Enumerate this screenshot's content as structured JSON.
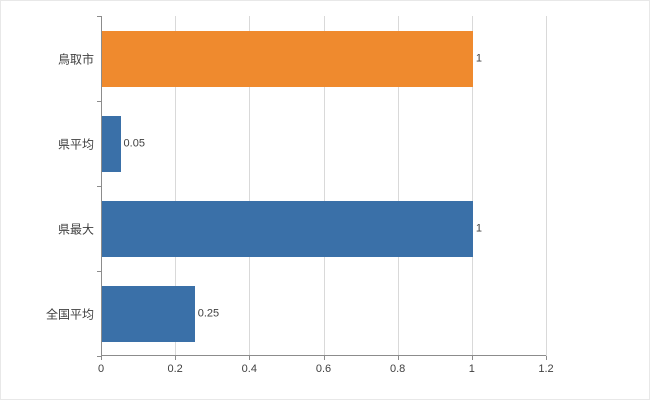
{
  "chart_data": {
    "type": "bar",
    "orientation": "horizontal",
    "title": "",
    "categories": [
      "鳥取市",
      "県平均",
      "県最大",
      "全国平均"
    ],
    "values": [
      1,
      0.05,
      1,
      0.25
    ],
    "value_labels": [
      "1",
      "0.05",
      "1",
      "0.25"
    ],
    "series": [
      {
        "name": "",
        "values": [
          1,
          0.05,
          1,
          0.25
        ]
      }
    ],
    "bar_colors": [
      "#ef8a2e",
      "#3a70a8",
      "#3a70a8",
      "#3a70a8"
    ],
    "xlim": [
      0,
      1.2
    ],
    "xticks": [
      0,
      0.2,
      0.4,
      0.6,
      0.8,
      1,
      1.2
    ],
    "xtick_labels": [
      "0",
      "0.2",
      "0.4",
      "0.6",
      "0.8",
      "1",
      "1.2"
    ],
    "ylabel": "",
    "xlabel": "",
    "grid": "vertical-only",
    "legend": "none"
  },
  "style": {
    "grid_color": "#d9d9d9",
    "axis_color": "#8c8c8c",
    "text_color": "#404040",
    "value_text_color": "#404040",
    "background": "#ffffff"
  }
}
